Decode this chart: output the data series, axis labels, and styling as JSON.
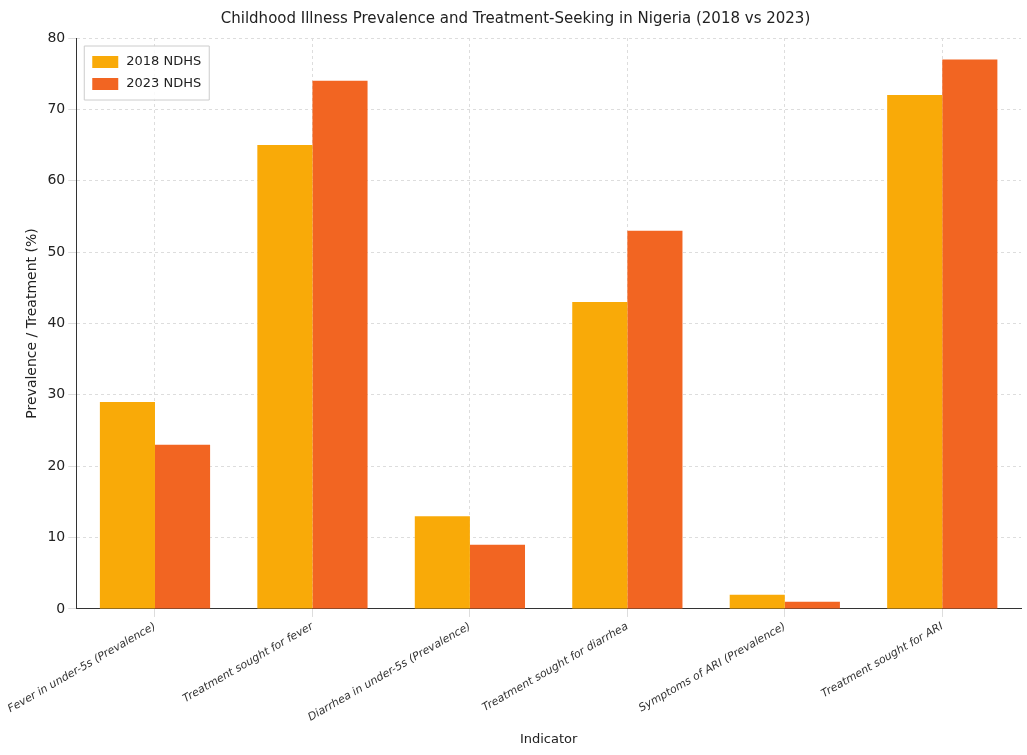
{
  "chart_data": {
    "type": "bar",
    "title": "Childhood Illness Prevalence and Treatment-Seeking in Nigeria (2018 vs 2023)",
    "xlabel": "Indicator",
    "ylabel": "Prevalence / Treatment (%)",
    "categories": [
      "Fever in under-5s (Prevalence)",
      "Treatment sought for fever",
      "Diarrhea in under-5s (Prevalence)",
      "Treatment sought for diarrhea",
      "Symptoms of ARI (Prevalence)",
      "Treatment sought for ARI"
    ],
    "series": [
      {
        "name": "2018 NDHS",
        "color": "#f9aa08",
        "values": [
          29,
          65,
          13,
          43,
          2,
          72
        ]
      },
      {
        "name": "2023 NDHS",
        "color": "#f26522",
        "values": [
          23,
          74,
          9,
          53,
          1,
          77
        ]
      }
    ],
    "ylim": [
      0,
      80
    ],
    "yticks": [
      0,
      10,
      20,
      30,
      40,
      50,
      60,
      70,
      80
    ],
    "grid": true,
    "legend": "top left"
  }
}
